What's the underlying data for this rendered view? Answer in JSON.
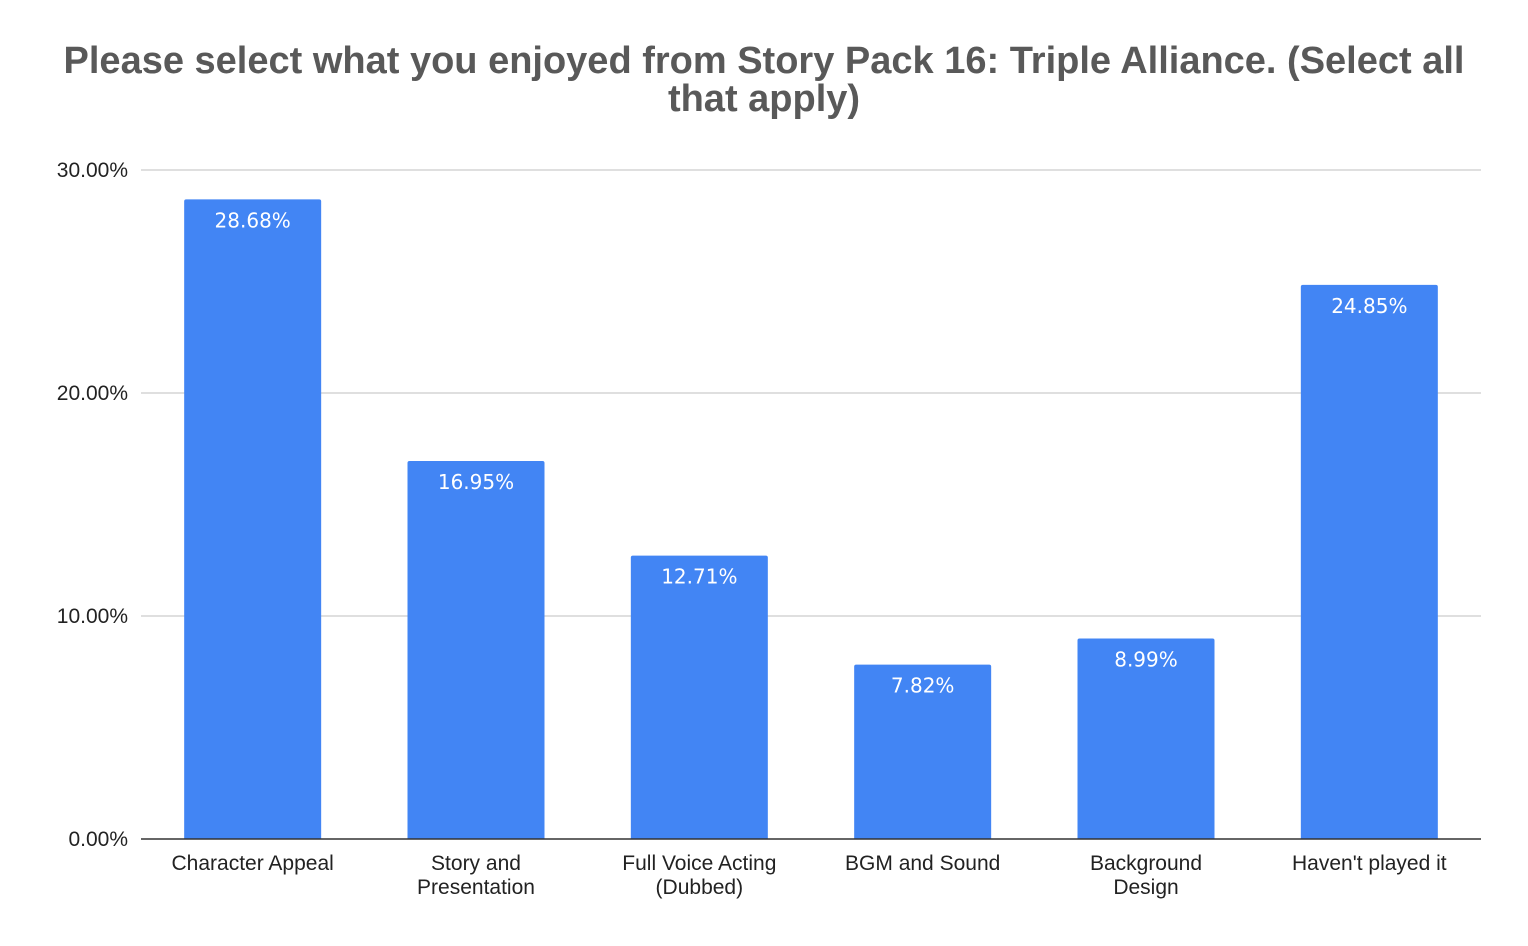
{
  "chart_data": {
    "type": "bar",
    "title": "Please select what you enjoyed from Story Pack 16: Triple Alliance. (Select all that apply)",
    "categories": [
      [
        "Character Appeal"
      ],
      [
        "Story and",
        "Presentation"
      ],
      [
        "Full Voice Acting",
        "(Dubbed)"
      ],
      [
        "BGM and Sound"
      ],
      [
        "Background",
        "Design"
      ],
      [
        "Haven't played it"
      ]
    ],
    "values": [
      28.68,
      16.95,
      12.71,
      7.82,
      8.99,
      24.85
    ],
    "data_labels": [
      "28.68%",
      "16.95%",
      "12.71%",
      "7.82%",
      "8.99%",
      "24.85%"
    ],
    "y_ticks": [
      0,
      10,
      20,
      30
    ],
    "y_tick_labels": [
      "0.00%",
      "10.00%",
      "20.00%",
      "30.00%"
    ],
    "ylim": [
      0,
      30
    ],
    "xlabel": "",
    "ylabel": "",
    "grid": true,
    "bar_color": "#4285f4",
    "grid_color": "#cccccc",
    "axis_color": "#333333"
  }
}
